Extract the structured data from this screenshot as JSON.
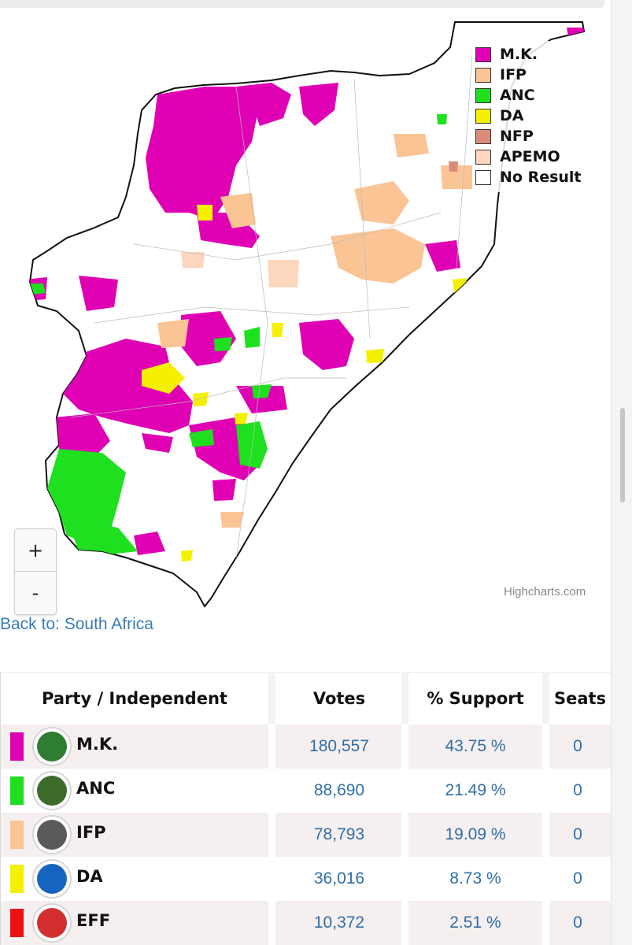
{
  "map": {
    "credit": "Highcharts.com",
    "legend": [
      {
        "label": "M.K.",
        "color": "#e000b4"
      },
      {
        "label": "IFP",
        "color": "#fbc495"
      },
      {
        "label": "ANC",
        "color": "#1ee01e"
      },
      {
        "label": "DA",
        "color": "#f5f000"
      },
      {
        "label": "NFP",
        "color": "#d98a7a"
      },
      {
        "label": "APEMO",
        "color": "#fcd6bd"
      },
      {
        "label": "No Result",
        "color": "#ffffff"
      }
    ],
    "zoom_in_label": "+",
    "zoom_out_label": "-"
  },
  "back_link": "Back to: South Africa",
  "table": {
    "headers": {
      "party": "Party / Independent",
      "votes": "Votes",
      "support": "% Support",
      "seats": "Seats"
    },
    "rows": [
      {
        "party": "M.K.",
        "votes": "180,557",
        "support": "43.75 %",
        "seats": "0",
        "color": "#e000b4",
        "logo_color": "#2e7d32",
        "logo_icon": "mk-logo-icon"
      },
      {
        "party": "ANC",
        "votes": "88,690",
        "support": "21.49 %",
        "seats": "0",
        "color": "#1ee01e",
        "logo_color": "#3a6b2a",
        "logo_icon": "anc-logo-icon"
      },
      {
        "party": "IFP",
        "votes": "78,793",
        "support": "19.09 %",
        "seats": "0",
        "color": "#fbc495",
        "logo_color": "#5a5a5a",
        "logo_icon": "ifp-logo-icon"
      },
      {
        "party": "DA",
        "votes": "36,016",
        "support": "8.73 %",
        "seats": "0",
        "color": "#f5f000",
        "logo_color": "#1565c0",
        "logo_icon": "da-logo-icon"
      },
      {
        "party": "EFF",
        "votes": "10,372",
        "support": "2.51 %",
        "seats": "0",
        "color": "#ee1111",
        "logo_color": "#d32f2f",
        "logo_icon": "eff-logo-icon"
      }
    ]
  }
}
